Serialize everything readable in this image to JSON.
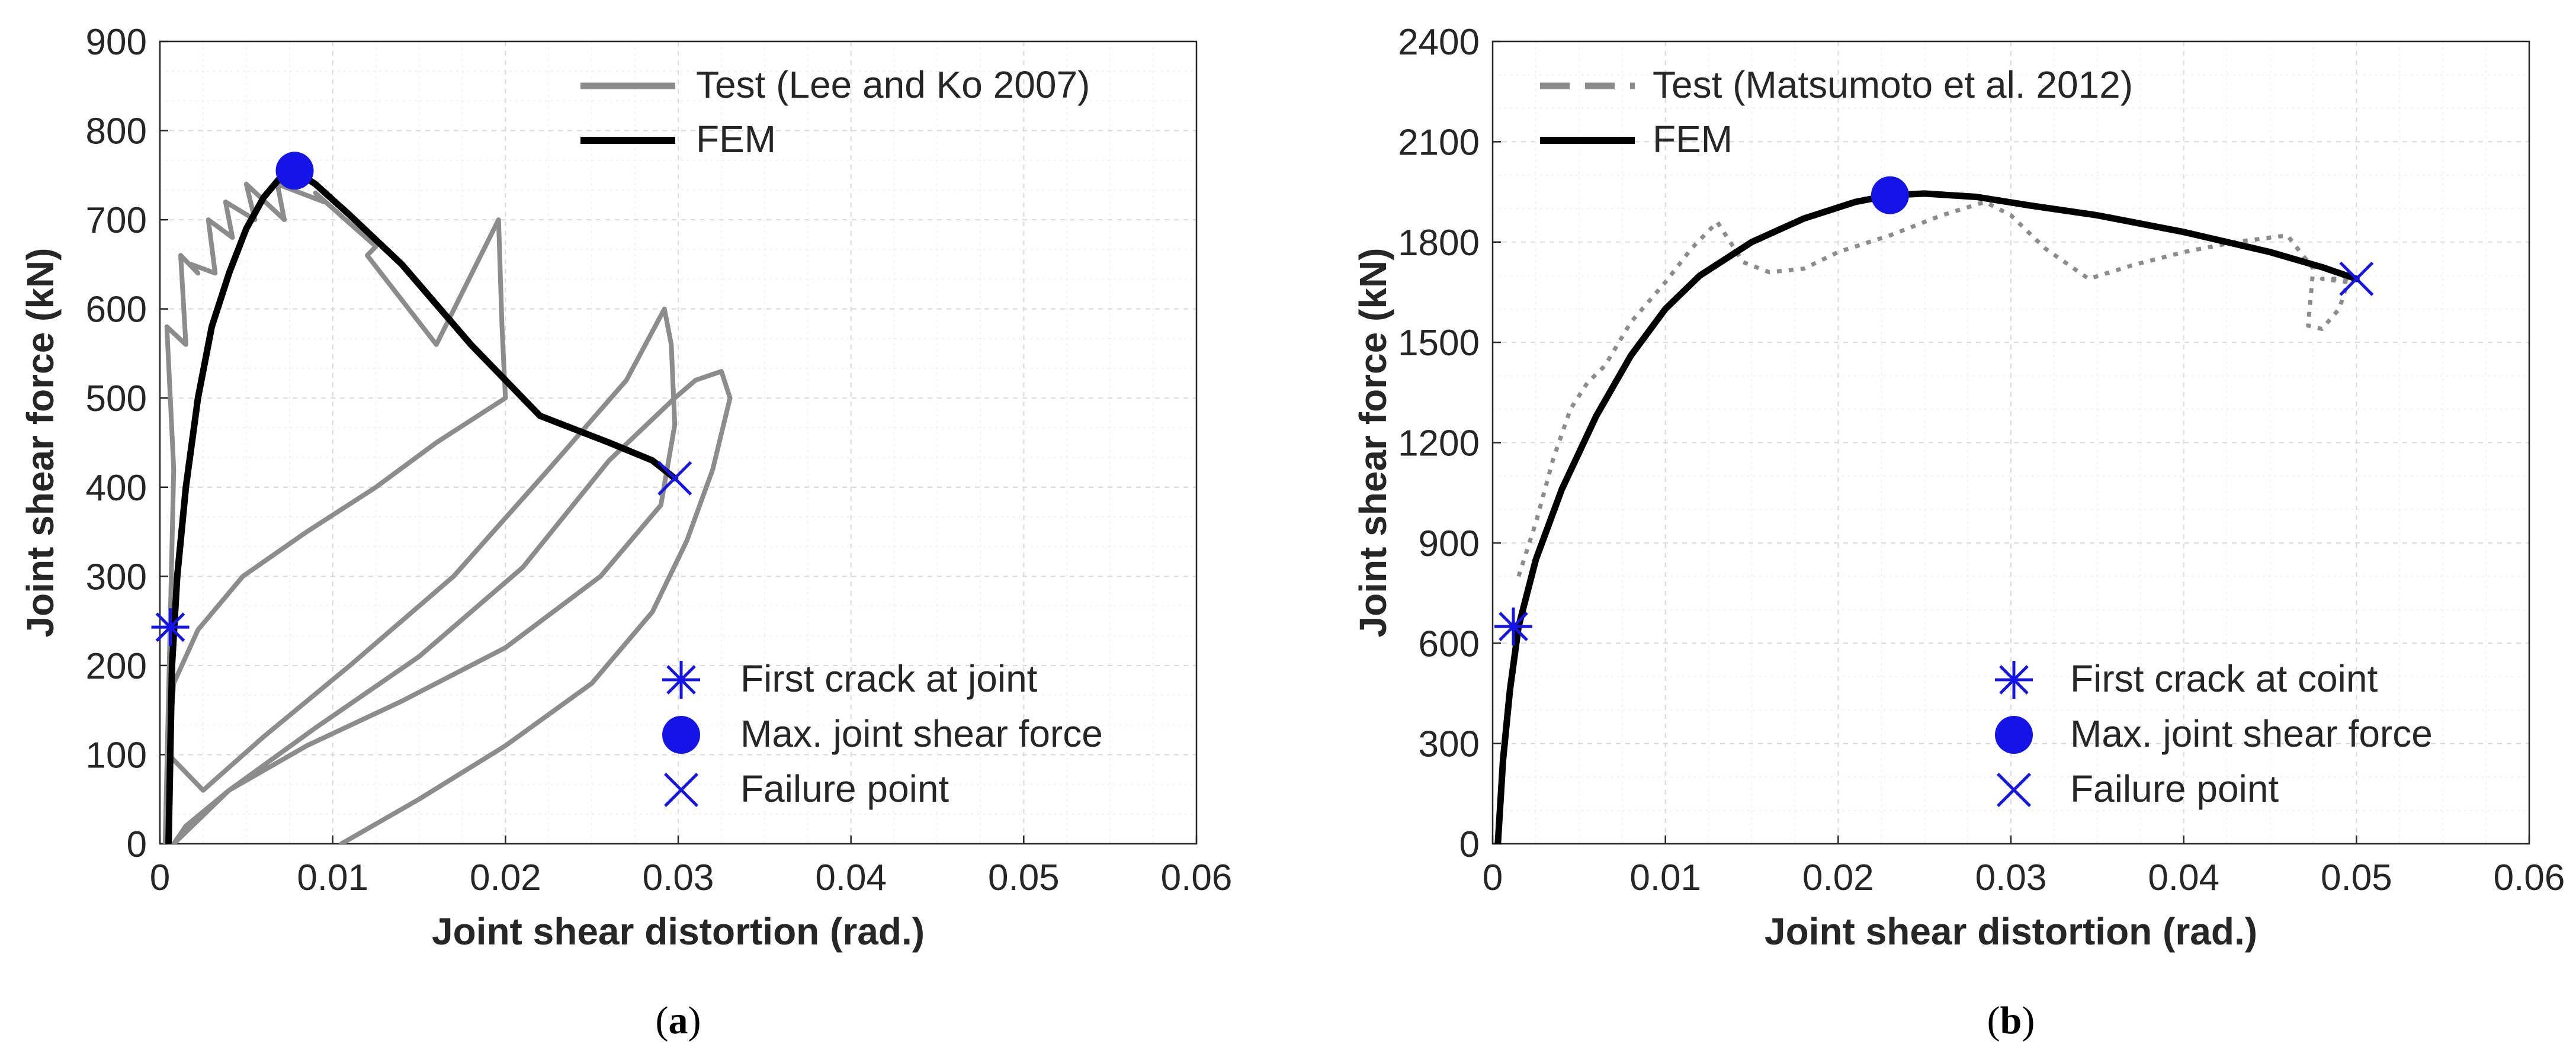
{
  "chart_data": [
    {
      "type": "line",
      "panel_label": "a",
      "xlabel": "Joint shear distortion  (rad.)",
      "ylabel": "Joint shear force  (kN)",
      "xlim": [
        0,
        0.06
      ],
      "ylim": [
        0,
        900
      ],
      "x_ticks": [
        "0",
        "0.01",
        "0.02",
        "0.03",
        "0.04",
        "0.05",
        "0.06"
      ],
      "y_ticks": [
        "0",
        "100",
        "200",
        "300",
        "400",
        "500",
        "600",
        "700",
        "800",
        "900"
      ],
      "x_tick_values": [
        0,
        0.01,
        0.02,
        0.03,
        0.04,
        0.05,
        0.06
      ],
      "y_tick_values": [
        0,
        100,
        200,
        300,
        400,
        500,
        600,
        700,
        800,
        900
      ],
      "grid": true,
      "legend_lines": "top-right",
      "legend_markers": "bottom-right",
      "series": [
        {
          "name": "Test (Lee and Ko 2007)",
          "style": "solid",
          "color": "#8c8c8c",
          "x": [
            0.0003,
            0.0008,
            0.0004,
            0.0015,
            0.0012,
            0.0022,
            0.0018,
            0.0032,
            0.0028,
            0.0042,
            0.0038,
            0.0055,
            0.005,
            0.0072,
            0.0068,
            0.0095,
            0.009,
            0.0125,
            0.012,
            0.016,
            0.0196,
            0.0198,
            0.02,
            0.016,
            0.0125,
            0.0085,
            0.0048,
            0.0022,
            0.0008,
            0.0005,
            0.0025,
            0.006,
            0.011,
            0.017,
            0.0225,
            0.027,
            0.0292,
            0.0296,
            0.0298,
            0.029,
            0.0255,
            0.02,
            0.014,
            0.0085,
            0.004,
            0.0015,
            0.0008,
            0.004,
            0.009,
            0.015,
            0.021,
            0.026,
            0.0298,
            0.031,
            0.0325,
            0.033,
            0.032,
            0.0305,
            0.0285,
            0.025,
            0.02,
            0.015,
            0.0105
          ],
          "y": [
            0,
            420,
            580,
            560,
            660,
            640,
            650,
            640,
            700,
            680,
            720,
            700,
            740,
            700,
            740,
            720,
            730,
            670,
            660,
            560,
            700,
            580,
            500,
            450,
            400,
            350,
            300,
            240,
            180,
            100,
            60,
            120,
            200,
            300,
            420,
            520,
            600,
            560,
            470,
            380,
            300,
            220,
            160,
            110,
            60,
            20,
            0,
            60,
            130,
            210,
            310,
            430,
            500,
            520,
            530,
            500,
            420,
            340,
            260,
            180,
            110,
            50,
            0
          ]
        },
        {
          "name": "FEM",
          "style": "solid",
          "color": "#000000",
          "x": [
            0.0005,
            0.0007,
            0.001,
            0.0015,
            0.0022,
            0.003,
            0.004,
            0.005,
            0.006,
            0.007,
            0.0078,
            0.009,
            0.011,
            0.014,
            0.018,
            0.022,
            0.026,
            0.0285,
            0.0298
          ],
          "y": [
            0,
            200,
            300,
            400,
            500,
            580,
            640,
            690,
            725,
            748,
            755,
            740,
            705,
            650,
            560,
            480,
            450,
            430,
            410
          ]
        }
      ],
      "markers": [
        {
          "name": "First crack at joint",
          "shape": "asterisk",
          "color": "#1414e6",
          "x": 0.0006,
          "y": 243
        },
        {
          "name": "Max. joint shear force",
          "shape": "circle",
          "color": "#1414e6",
          "x": 0.0078,
          "y": 755
        },
        {
          "name": "Failure point",
          "shape": "x",
          "color": "#1414e6",
          "x": 0.0298,
          "y": 410
        }
      ]
    },
    {
      "type": "line",
      "panel_label": "b",
      "xlabel": "Joint shear distortion  (rad.)",
      "ylabel": "Joint shear force  (kN)",
      "xlim": [
        0,
        0.06
      ],
      "ylim": [
        0,
        2400
      ],
      "x_ticks": [
        "0",
        "0.01",
        "0.02",
        "0.03",
        "0.04",
        "0.05",
        "0.06"
      ],
      "y_ticks": [
        "0",
        "300",
        "600",
        "900",
        "1200",
        "1500",
        "1800",
        "2100",
        "2400"
      ],
      "x_tick_values": [
        0,
        0.01,
        0.02,
        0.03,
        0.04,
        0.05,
        0.06
      ],
      "y_tick_values": [
        0,
        300,
        600,
        900,
        1200,
        1500,
        1800,
        2100,
        2400
      ],
      "grid": true,
      "legend_lines": "top-left",
      "legend_markers": "bottom-right",
      "series": [
        {
          "name": "Test (Matsumoto et al. 2012)",
          "style": "dashed",
          "color": "#8c8c8c",
          "x": [
            0.0015,
            0.0025,
            0.0035,
            0.0045,
            0.0055,
            0.0065,
            0.008,
            0.01,
            0.0115,
            0.013,
            0.0145,
            0.016,
            0.018,
            0.02,
            0.023,
            0.026,
            0.0285,
            0.03,
            0.032,
            0.0345,
            0.037,
            0.04,
            0.043,
            0.046,
            0.0475,
            0.0472,
            0.048,
            0.049,
            0.0495,
            0.048,
            0.0495,
            0.05
          ],
          "y": [
            800,
            960,
            1150,
            1300,
            1380,
            1430,
            1560,
            1680,
            1780,
            1860,
            1740,
            1710,
            1720,
            1770,
            1820,
            1880,
            1920,
            1880,
            1780,
            1690,
            1730,
            1770,
            1800,
            1820,
            1720,
            1550,
            1540,
            1600,
            1680,
            1690,
            1690,
            1690
          ]
        },
        {
          "name": "FEM",
          "style": "solid",
          "color": "#000000",
          "x": [
            0.0003,
            0.0006,
            0.001,
            0.0015,
            0.0025,
            0.004,
            0.006,
            0.008,
            0.01,
            0.012,
            0.015,
            0.018,
            0.021,
            0.023,
            0.025,
            0.028,
            0.031,
            0.035,
            0.04,
            0.045,
            0.048,
            0.05
          ],
          "y": [
            0,
            250,
            460,
            650,
            850,
            1060,
            1280,
            1460,
            1600,
            1700,
            1800,
            1870,
            1920,
            1940,
            1945,
            1935,
            1910,
            1880,
            1830,
            1770,
            1725,
            1690
          ]
        }
      ],
      "markers": [
        {
          "name": "First crack at coint",
          "shape": "asterisk",
          "color": "#1414e6",
          "x": 0.0012,
          "y": 650
        },
        {
          "name": "Max. joint shear force",
          "shape": "circle",
          "color": "#1414e6",
          "x": 0.023,
          "y": 1940
        },
        {
          "name": "Failure point",
          "shape": "x",
          "color": "#1414e6",
          "x": 0.05,
          "y": 1690
        }
      ]
    }
  ]
}
